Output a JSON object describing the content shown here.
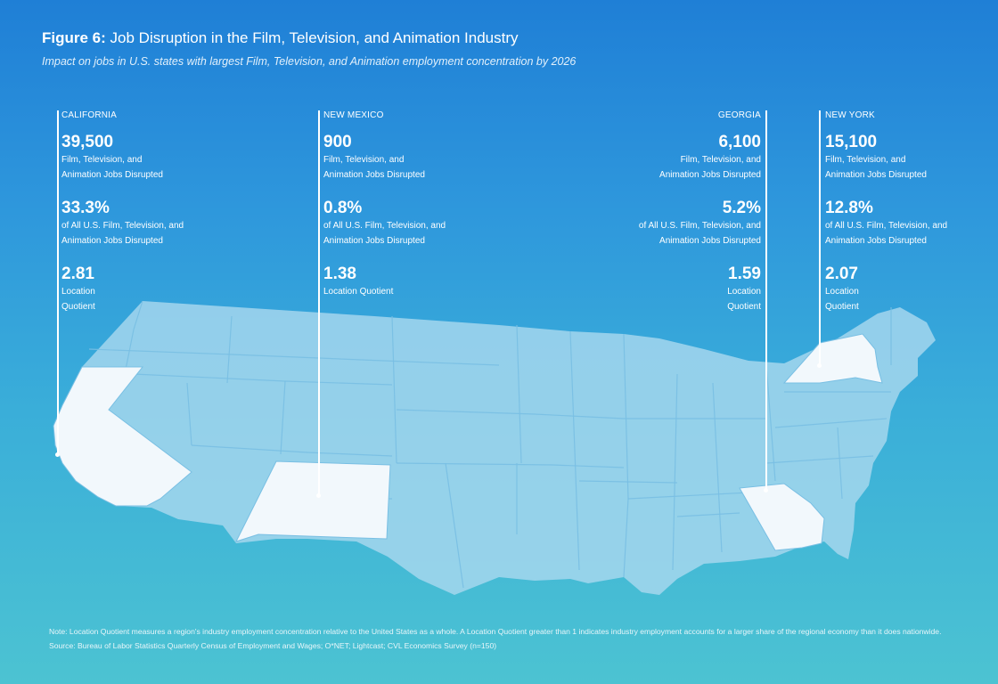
{
  "figure": {
    "label": "Figure 6:",
    "title": "Job Disruption in the Film, Television, and Animation Industry",
    "subtitle": "Impact on jobs in U.S. states with largest Film, Television, and Animation employment concentration by 2026"
  },
  "states": [
    {
      "name": "CALIFORNIA",
      "jobs": "39,500",
      "jobs_label_1": "Film, Television, and",
      "jobs_label_2": "Animation Jobs Disrupted",
      "share": "33.3%",
      "share_label_1": "of All U.S. Film, Television, and",
      "share_label_2": "Animation Jobs Disrupted",
      "lq": "2.81",
      "lq_label_1": "Location",
      "lq_label_2": "Quotient"
    },
    {
      "name": "NEW MEXICO",
      "jobs": "900",
      "jobs_label_1": "Film, Television, and",
      "jobs_label_2": "Animation Jobs Disrupted",
      "share": "0.8%",
      "share_label_1": "of All U.S. Film, Television, and",
      "share_label_2": "Animation Jobs Disrupted",
      "lq": "1.38",
      "lq_label_1": "Location Quotient",
      "lq_label_2": ""
    },
    {
      "name": "GEORGIA",
      "jobs": "6,100",
      "jobs_label_1": "Film, Television, and",
      "jobs_label_2": "Animation Jobs Disrupted",
      "share": "5.2%",
      "share_label_1": "of All U.S. Film, Television, and",
      "share_label_2": "Animation Jobs Disrupted",
      "lq": "1.59",
      "lq_label_1": "Location",
      "lq_label_2": "Quotient"
    },
    {
      "name": "NEW YORK",
      "jobs": "15,100",
      "jobs_label_1": "Film, Television, and",
      "jobs_label_2": "Animation Jobs Disrupted",
      "share": "12.8%",
      "share_label_1": "of All U.S. Film, Television, and",
      "share_label_2": "Animation Jobs Disrupted",
      "lq": "2.07",
      "lq_label_1": "Location",
      "lq_label_2": "Quotient"
    }
  ],
  "notes": {
    "note": "Note: Location Quotient measures a region's industry employment concentration relative to the United States as a whole. A Location Quotient greater than 1 indicates industry employment accounts for a larger share of the regional economy than it does nationwide.",
    "source": "Source: Bureau of Labor Statistics Quarterly Census of Employment and Wages; O*NET; Lightcast; CVL Economics Survey (n=150)"
  },
  "colors": {
    "highlight": "#f2f8fc",
    "land": "#a8d8ee",
    "border": "#79bfe3"
  }
}
